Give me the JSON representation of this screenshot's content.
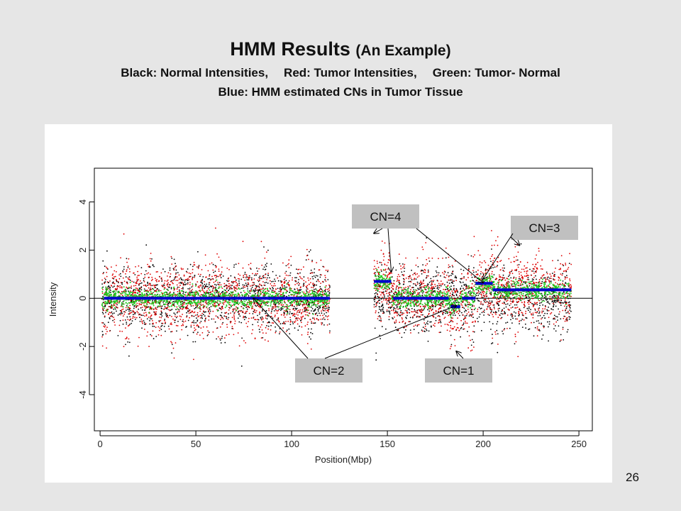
{
  "slide": {
    "title_main": "HMM Results",
    "title_paren": "(An Example)",
    "subtitle_line1": {
      "part1": "Black: Normal Intensities,",
      "part2": "Red: Tumor Intensities,",
      "part3": "Green: Tumor- Normal"
    },
    "subtitle_line2": "Blue: HMM estimated CNs in Tumor Tissue",
    "page_number": "26"
  },
  "chart_data": {
    "type": "scatter",
    "xlabel": "Position(Mbp)",
    "ylabel": "Intensity",
    "xlim": [
      -3,
      257
    ],
    "ylim": [
      -5.5,
      5.4
    ],
    "x_ticks": [
      0,
      50,
      100,
      150,
      200,
      250
    ],
    "y_ticks": [
      -4,
      -2,
      0,
      2,
      4
    ],
    "reference_line_y": 0,
    "colors": {
      "normal": "#000000",
      "tumor": "#e00000",
      "difference": "#22cc22",
      "hmm": "#0000cc",
      "label_box": "#c0c0c0"
    },
    "point_regions": [
      {
        "x_start": 1,
        "x_end": 120
      },
      {
        "x_start": 143,
        "x_end": 246
      }
    ],
    "series": [
      {
        "name": "Black: Normal Intensities",
        "color": "#000000",
        "note": "dense scatter around 0, spread about -3 to 3"
      },
      {
        "name": "Red: Tumor Intensities",
        "color": "#e00000",
        "note": "dense scatter around 0, spread about -3 to 3"
      },
      {
        "name": "Green: Tumor- Normal",
        "color": "#22cc22",
        "note": "narrow band centred on the HMM level"
      }
    ],
    "hmm_segments": [
      {
        "x_start": 2,
        "x_end": 120,
        "y": 0.0
      },
      {
        "x_start": 143,
        "x_end": 152,
        "y": 0.7
      },
      {
        "x_start": 153,
        "x_end": 182,
        "y": 0.0
      },
      {
        "x_start": 183,
        "x_end": 188,
        "y": -0.35
      },
      {
        "x_start": 189,
        "x_end": 196,
        "y": 0.0
      },
      {
        "x_start": 196,
        "x_end": 205,
        "y": 0.62
      },
      {
        "x_start": 205,
        "x_end": 246,
        "y": 0.35
      }
    ],
    "annotations": [
      {
        "text": "CN=4",
        "arrow_targets": [
          [
            143,
            2.7
          ],
          [
            152,
            1.1
          ],
          [
            200,
            0.65
          ]
        ]
      },
      {
        "text": "CN=3",
        "arrow_targets": [
          [
            219,
            2.2
          ],
          [
            200,
            0.8
          ]
        ]
      },
      {
        "text": "CN=2",
        "arrow_targets": [
          [
            80,
            0.0
          ],
          [
            186,
            -0.3
          ]
        ]
      },
      {
        "text": "CN=1",
        "arrow_targets": [
          [
            186,
            -2.2
          ]
        ]
      }
    ]
  }
}
